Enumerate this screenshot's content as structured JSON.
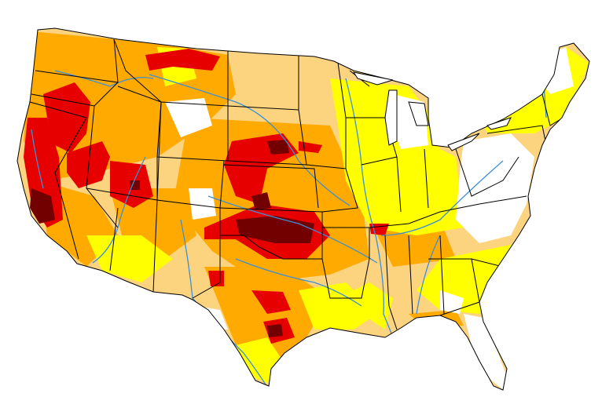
{
  "map": {
    "subject": "contiguous-united-states",
    "colors": {
      "none": "#FFFFFF",
      "d0": "#FFFF00",
      "d1": "#FCD37F",
      "d2": "#FFAA00",
      "d3": "#E60000",
      "d4": "#730000",
      "rivers": "#3D8FD6",
      "borders": "#000000"
    }
  }
}
